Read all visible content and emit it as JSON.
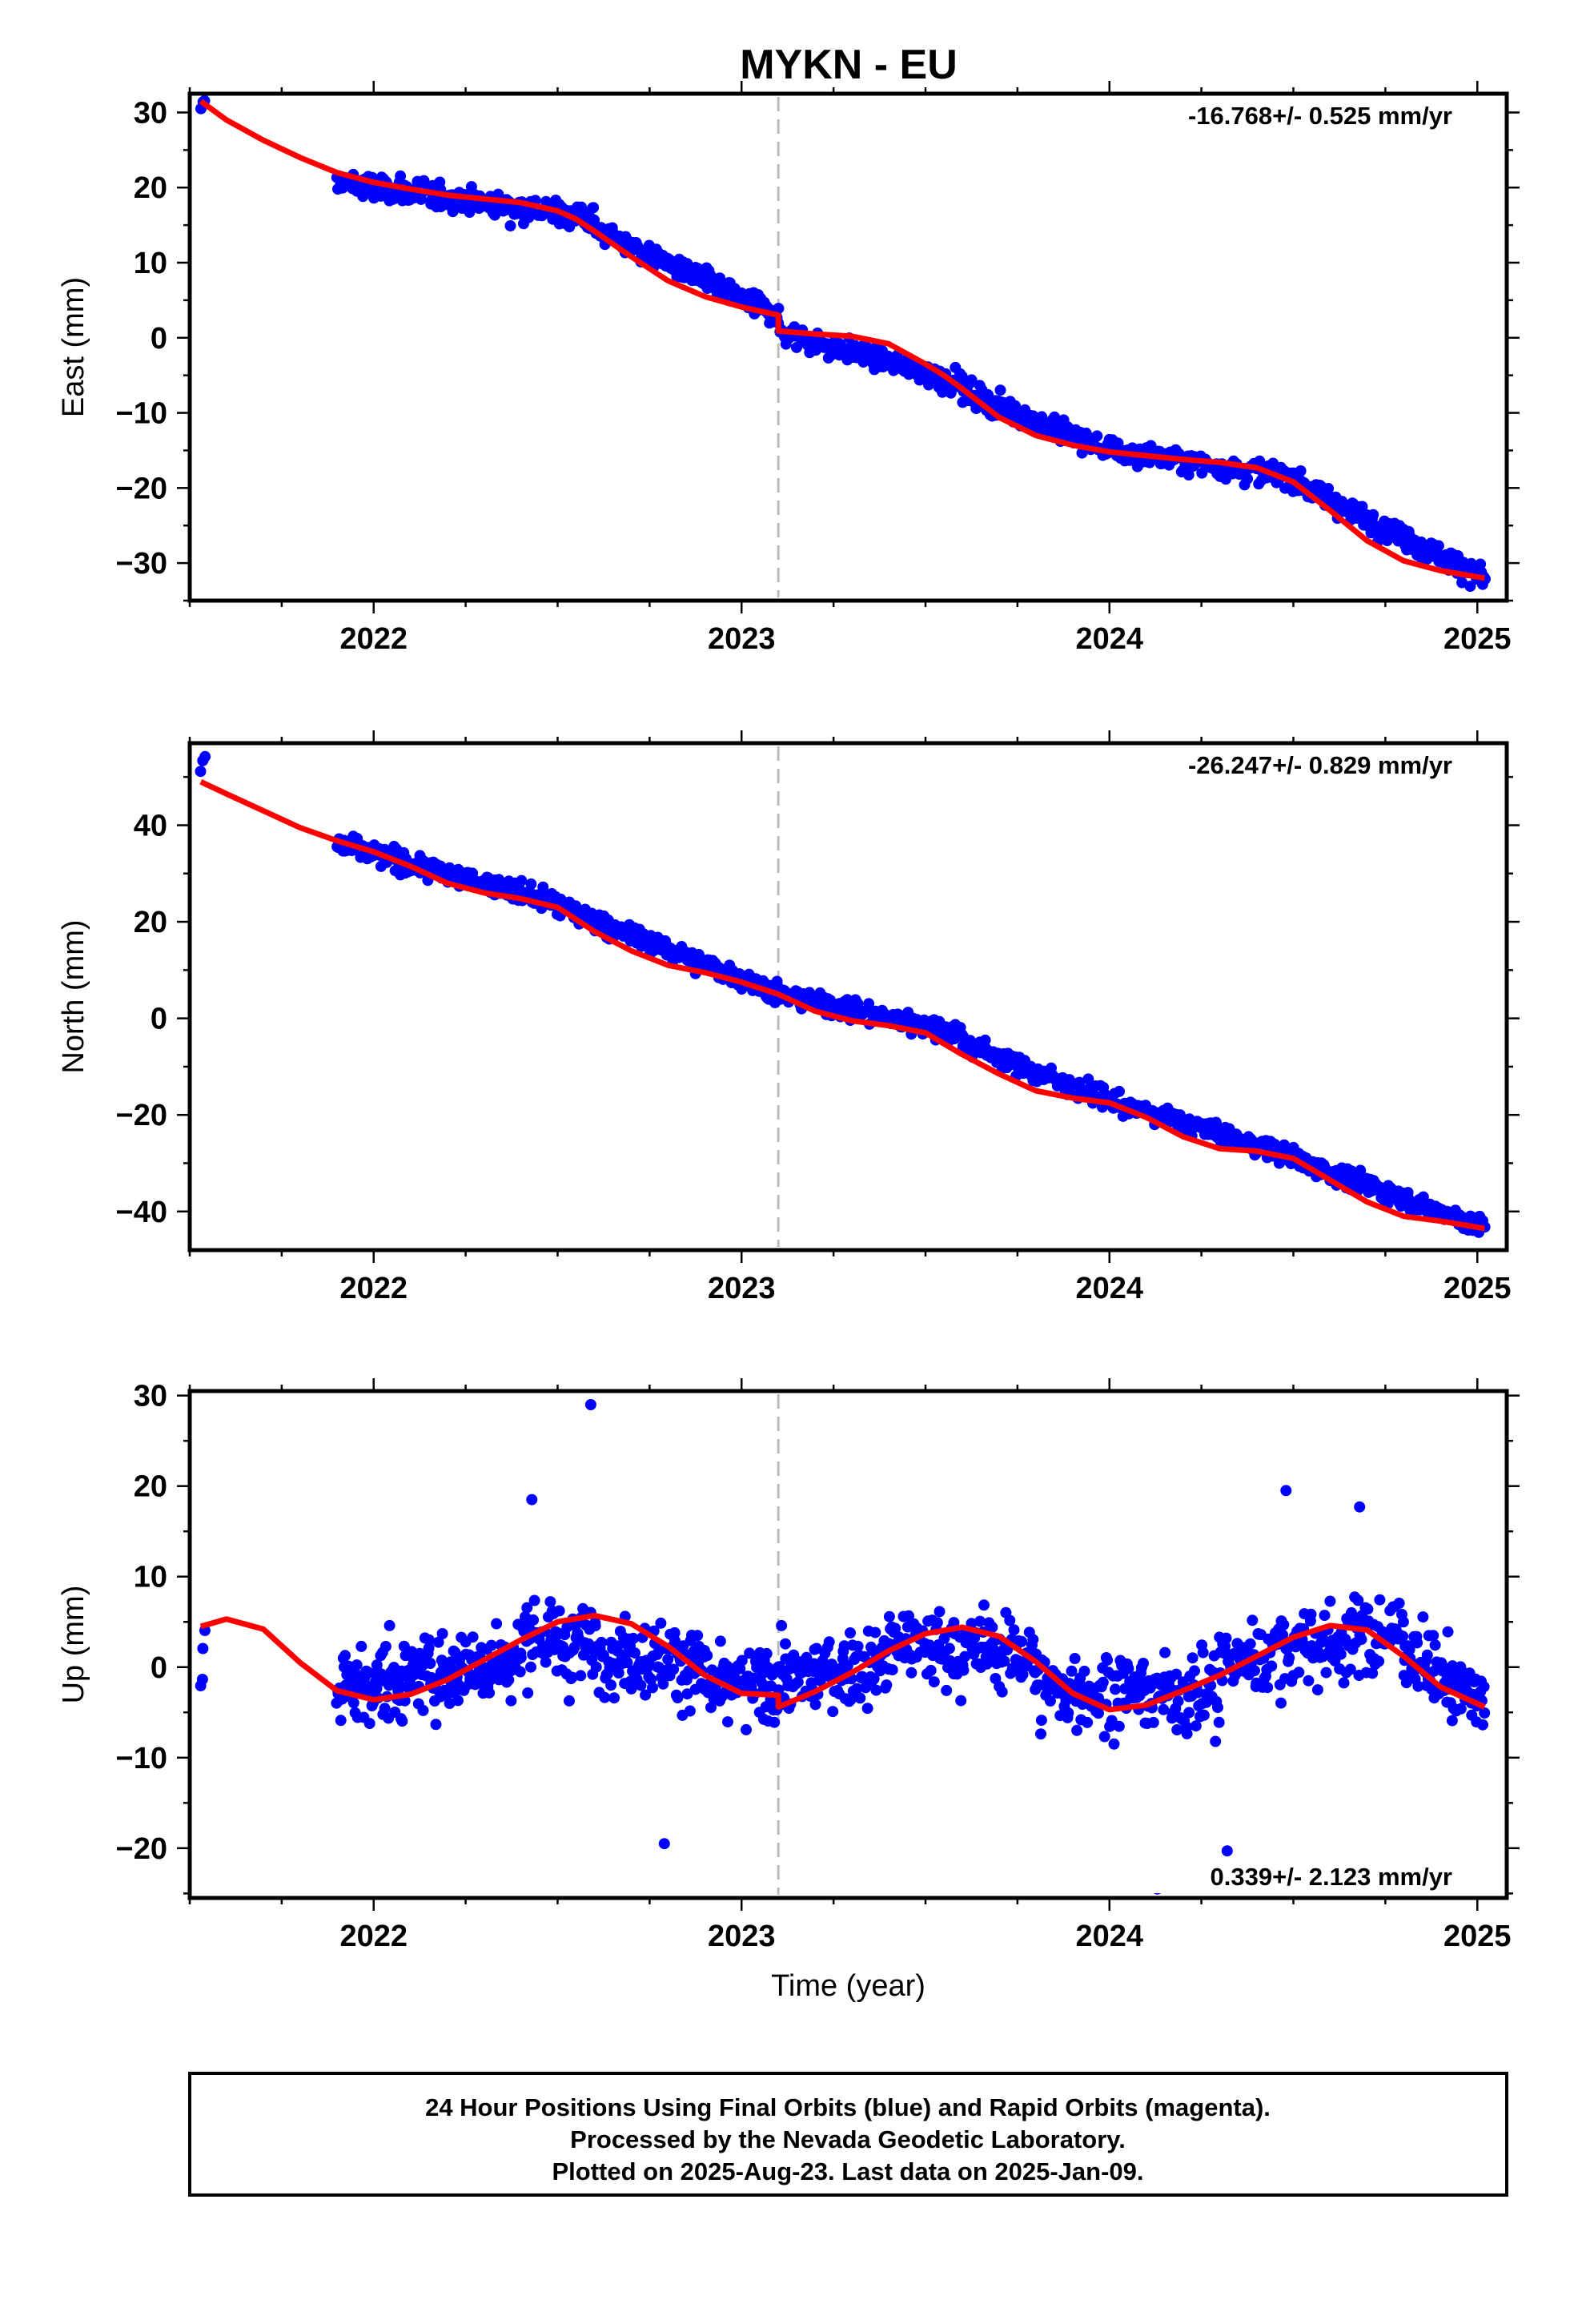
{
  "title": "MYKN - EU",
  "footer": {
    "line1": "24 Hour Positions Using Final Orbits (blue) and Rapid Orbits (magenta).",
    "line2": "Processed by the Nevada Geodetic Laboratory.",
    "line3": "Plotted on 2025-Aug-23. Last data on 2025-Jan-09."
  },
  "colors": {
    "points": "#0000ff",
    "model": "#ff0000",
    "event_line": "#bbbbbb",
    "frame": "#000000"
  },
  "chart_data": [
    {
      "type": "scatter",
      "ylabel": "East (mm)",
      "xlabel": "",
      "xlim": [
        2021.5,
        2025.08
      ],
      "ylim": [
        -35,
        32.5
      ],
      "x_ticks": [
        2022,
        2023,
        2024,
        2025
      ],
      "y_ticks": [
        30,
        20,
        10,
        0,
        -10,
        -20,
        -30
      ],
      "y_tick_labels": [
        "30",
        "20",
        "10",
        "0",
        "−10",
        "−20",
        "−30"
      ],
      "rate_text": "-16.768+/- 0.525 mm/yr",
      "event_line_x": 2023.1,
      "grid": false,
      "model_curve": {
        "x": [
          2021.53,
          2021.6,
          2021.7,
          2021.8,
          2021.9,
          2022.0,
          2022.1,
          2022.2,
          2022.3,
          2022.4,
          2022.5,
          2022.55,
          2022.6,
          2022.7,
          2022.8,
          2022.9,
          2023.0,
          2023.1,
          2023.1,
          2023.2,
          2023.3,
          2023.4,
          2023.5,
          2023.55,
          2023.6,
          2023.7,
          2023.8,
          2023.9,
          2024.0,
          2024.1,
          2024.2,
          2024.3,
          2024.4,
          2024.5,
          2024.6,
          2024.7,
          2024.8,
          2024.9,
          2025.02
        ],
        "y": [
          31.5,
          29.0,
          26.3,
          24.0,
          22.0,
          20.7,
          19.8,
          19.0,
          18.5,
          18.0,
          16.9,
          15.8,
          14.2,
          10.8,
          7.6,
          5.5,
          4.1,
          3.0,
          0.9,
          0.5,
          0.2,
          -0.8,
          -3.5,
          -5.0,
          -6.8,
          -10.6,
          -13.0,
          -14.3,
          -15.2,
          -15.7,
          -16.2,
          -16.6,
          -17.3,
          -19.2,
          -23.0,
          -27.0,
          -29.7,
          -31.0,
          -32.0
        ]
      },
      "points": {
        "segments": [
          [
            2021.53,
            2021.54,
            30,
            31.5,
            2.0,
            3
          ],
          [
            2021.9,
            2022.6,
            20.7,
            16.0,
            2.2,
            240
          ],
          [
            2022.6,
            2023.1,
            14.5,
            3.0,
            2.0,
            170
          ],
          [
            2023.1,
            2023.6,
            0.9,
            -6.0,
            2.0,
            150
          ],
          [
            2023.6,
            2024.0,
            -7.0,
            -15.0,
            2.0,
            130
          ],
          [
            2024.0,
            2024.5,
            -15.0,
            -18.5,
            2.0,
            160
          ],
          [
            2024.5,
            2025.02,
            -19.0,
            -32.0,
            2.0,
            190
          ]
        ]
      }
    },
    {
      "type": "scatter",
      "ylabel": "North (mm)",
      "xlabel": "",
      "xlim": [
        2021.5,
        2025.08
      ],
      "ylim": [
        -48,
        57
      ],
      "x_ticks": [
        2022,
        2023,
        2024,
        2025
      ],
      "y_ticks": [
        40,
        20,
        0,
        -20,
        -40
      ],
      "y_tick_labels": [
        "40",
        "20",
        "0",
        "−20",
        "−40"
      ],
      "rate_text": "-26.247+/- 0.829 mm/yr",
      "event_line_x": 2023.1,
      "grid": false,
      "model_curve": {
        "x": [
          2021.53,
          2021.6,
          2021.7,
          2021.8,
          2021.9,
          2022.0,
          2022.1,
          2022.2,
          2022.3,
          2022.4,
          2022.5,
          2022.6,
          2022.7,
          2022.8,
          2022.9,
          2023.0,
          2023.1,
          2023.2,
          2023.3,
          2023.4,
          2023.5,
          2023.6,
          2023.7,
          2023.8,
          2023.9,
          2024.0,
          2024.1,
          2024.2,
          2024.3,
          2024.4,
          2024.5,
          2024.6,
          2024.7,
          2024.8,
          2024.9,
          2025.02
        ],
        "y": [
          49,
          46.5,
          43,
          39.5,
          36.8,
          34.5,
          31.5,
          28,
          26,
          24.8,
          23,
          18,
          14,
          11,
          9.5,
          7.5,
          5,
          1.5,
          -0.5,
          -1.5,
          -3,
          -7.5,
          -11.5,
          -15,
          -16.5,
          -17.5,
          -20.5,
          -24.5,
          -27,
          -27.5,
          -29,
          -33.5,
          -38,
          -41,
          -42,
          -43.5
        ]
      },
      "points": {
        "segments": [
          [
            2021.53,
            2021.54,
            51,
            55,
            2.0,
            3
          ],
          [
            2021.9,
            2022.5,
            36.0,
            24.0,
            2.8,
            220
          ],
          [
            2022.5,
            2023.1,
            23.0,
            5.5,
            2.8,
            200
          ],
          [
            2023.1,
            2023.6,
            5.0,
            -3.0,
            2.6,
            170
          ],
          [
            2023.6,
            2024.0,
            -5.0,
            -17.0,
            2.6,
            130
          ],
          [
            2024.0,
            2024.5,
            -17.0,
            -28.5,
            2.6,
            160
          ],
          [
            2024.5,
            2025.02,
            -29.0,
            -43.5,
            2.6,
            190
          ]
        ]
      }
    },
    {
      "type": "scatter",
      "ylabel": "Up (mm)",
      "xlabel": "Time (year)",
      "xlim": [
        2021.5,
        2025.08
      ],
      "ylim": [
        -25.5,
        30.5
      ],
      "x_ticks": [
        2022,
        2023,
        2024,
        2025
      ],
      "y_ticks": [
        30,
        20,
        10,
        0,
        -10,
        -20
      ],
      "y_tick_labels": [
        "30",
        "20",
        "10",
        "0",
        "−10",
        "−20"
      ],
      "rate_text": "0.339+/- 2.123 mm/yr",
      "event_line_x": 2023.1,
      "grid": false,
      "model_curve": {
        "x": [
          2021.53,
          2021.6,
          2021.7,
          2021.8,
          2021.9,
          2022.0,
          2022.1,
          2022.2,
          2022.3,
          2022.4,
          2022.5,
          2022.6,
          2022.7,
          2022.8,
          2022.9,
          2023.0,
          2023.1,
          2023.1,
          2023.2,
          2023.3,
          2023.4,
          2023.5,
          2023.6,
          2023.7,
          2023.8,
          2023.9,
          2024.0,
          2024.1,
          2024.2,
          2024.3,
          2024.4,
          2024.5,
          2024.6,
          2024.7,
          2024.8,
          2024.9,
          2025.02
        ],
        "y": [
          4.5,
          5.3,
          4.2,
          0.5,
          -2.6,
          -3.6,
          -3.0,
          -1.4,
          0.8,
          3.0,
          5.0,
          5.7,
          4.8,
          2.3,
          -0.9,
          -2.9,
          -3.1,
          -4.4,
          -2.7,
          -0.6,
          1.8,
          3.7,
          4.4,
          3.4,
          0.6,
          -2.9,
          -4.7,
          -4.2,
          -2.6,
          -0.9,
          1.2,
          3.3,
          4.6,
          4.1,
          1.2,
          -2.2,
          -4.4
        ]
      },
      "points": {
        "segments": [
          [
            2021.53,
            2021.54,
            -2,
            3.5,
            3.0,
            4
          ],
          [
            2021.9,
            2022.4,
            -2.5,
            1.0,
            5.5,
            220
          ],
          [
            2022.4,
            2022.9,
            3.5,
            0.0,
            5.5,
            200
          ],
          [
            2022.9,
            2023.4,
            -3.0,
            0.5,
            5.0,
            200
          ],
          [
            2023.4,
            2023.8,
            2.5,
            1.5,
            5.5,
            140
          ],
          [
            2023.8,
            2024.3,
            -2.5,
            -3.0,
            5.5,
            170
          ],
          [
            2024.3,
            2024.8,
            0.5,
            4.0,
            5.5,
            170
          ],
          [
            2024.8,
            2025.02,
            2.0,
            -4.0,
            5.0,
            90
          ]
        ],
        "outliers": [
          [
            2022.59,
            29.0
          ],
          [
            2024.13,
            -24.5
          ],
          [
            2024.32,
            -20.3
          ],
          [
            2022.79,
            -19.5
          ],
          [
            2024.48,
            19.5
          ],
          [
            2022.43,
            18.5
          ],
          [
            2024.68,
            17.7
          ]
        ]
      }
    }
  ]
}
